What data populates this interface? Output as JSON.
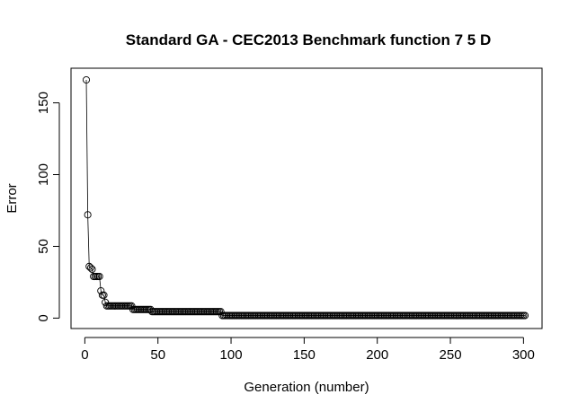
{
  "chart_data": {
    "type": "line",
    "title": "Standard GA - CEC2013 Benchmark function  7 5 D",
    "xlabel": "Generation (number)",
    "ylabel": "Error",
    "xlim": [
      1,
      301
    ],
    "ylim": [
      1.5,
      166
    ],
    "xticks": [
      0,
      50,
      100,
      150,
      200,
      250,
      300
    ],
    "yticks": [
      0,
      50,
      100,
      150
    ],
    "grid": false,
    "marker": "open-circle",
    "line_color": "#000000",
    "segments": [
      {
        "from": 1,
        "to": 1,
        "value": 166
      },
      {
        "from": 2,
        "to": 2,
        "value": 72
      },
      {
        "from": 3,
        "to": 3,
        "value": 36
      },
      {
        "from": 4,
        "to": 4,
        "value": 35
      },
      {
        "from": 5,
        "to": 5,
        "value": 34
      },
      {
        "from": 6,
        "to": 9,
        "value": 29
      },
      {
        "from": 10,
        "to": 10,
        "value": 29
      },
      {
        "from": 11,
        "to": 11,
        "value": 19
      },
      {
        "from": 12,
        "to": 12,
        "value": 16
      },
      {
        "from": 13,
        "to": 13,
        "value": 16
      },
      {
        "from": 14,
        "to": 14,
        "value": 11
      },
      {
        "from": 15,
        "to": 32,
        "value": 8.5
      },
      {
        "from": 33,
        "to": 45,
        "value": 6
      },
      {
        "from": 46,
        "to": 93,
        "value": 4.5
      },
      {
        "from": 94,
        "to": 301,
        "value": 1.8
      }
    ]
  }
}
